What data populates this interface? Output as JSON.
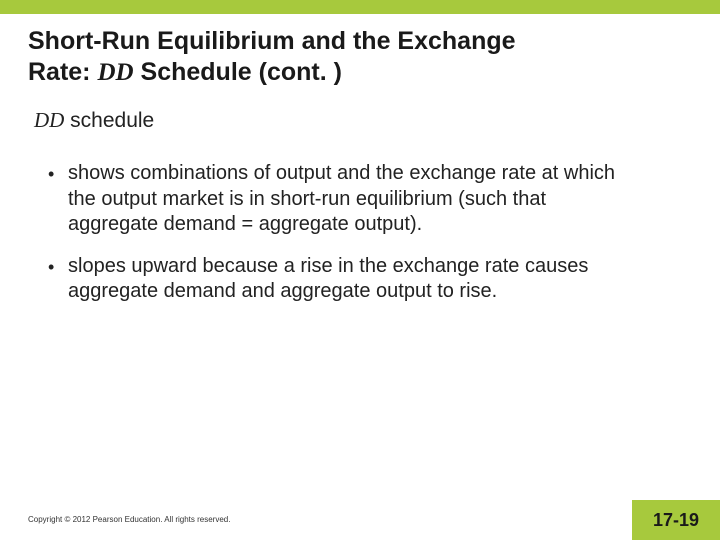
{
  "colors": {
    "accent": "#a7c93d",
    "text": "#1a1a1a",
    "background": "#ffffff"
  },
  "title": {
    "line1_pre": "Short-Run Equilibrium and the Exchange",
    "line2_pre": "Rate: ",
    "line2_italic": "DD",
    "line2_post": " Schedule (cont. )"
  },
  "subheading": {
    "italic": "DD",
    "rest": " schedule"
  },
  "bullets": [
    "shows combinations of output and the exchange rate at which the output market is in short-run equilibrium (such that aggregate demand = aggregate output).",
    "slopes upward because a rise in the exchange rate causes aggregate demand and aggregate output to rise."
  ],
  "footer": {
    "copyright": "Copyright © 2012 Pearson Education. All rights reserved.",
    "page": "17-19"
  }
}
